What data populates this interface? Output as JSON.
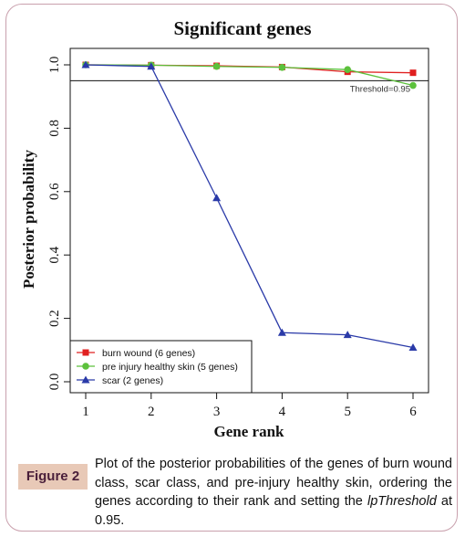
{
  "chart_data": {
    "type": "line",
    "title": "Significant genes",
    "xlabel": "Gene rank",
    "ylabel": "Posterior probability",
    "x": [
      1,
      2,
      3,
      4,
      5,
      6
    ],
    "xlim": [
      1,
      6
    ],
    "ylim": [
      0,
      1
    ],
    "x_ticks": [
      "1",
      "2",
      "3",
      "4",
      "5",
      "6"
    ],
    "y_ticks": [
      "0.0",
      "0.2",
      "0.4",
      "0.6",
      "0.8",
      "1.0"
    ],
    "threshold": {
      "value": 0.95,
      "label": "Threshold=0.95"
    },
    "legend_position": "bottom-left",
    "series": [
      {
        "name": "burn wound (6 genes)",
        "color": "#e02020",
        "marker": "square",
        "x": [
          1,
          2,
          3,
          4,
          5,
          6
        ],
        "values": [
          1.0,
          0.999,
          0.997,
          0.993,
          0.978,
          0.975
        ]
      },
      {
        "name": "pre injury healthy skin (5 genes)",
        "color": "#5cc13c",
        "marker": "circle",
        "x": [
          1,
          2,
          3,
          4,
          5,
          6
        ],
        "values": [
          1.0,
          0.999,
          0.995,
          0.992,
          0.985,
          0.935
        ]
      },
      {
        "name": "scar (2 genes)",
        "color": "#2a3aa8",
        "marker": "triangle",
        "x": [
          1,
          2,
          3,
          4,
          5,
          6
        ],
        "values": [
          1.0,
          0.995,
          0.58,
          0.155,
          0.148,
          0.108
        ]
      }
    ]
  },
  "caption": {
    "label": "Figure 2",
    "text_before": "Plot of the posterior probabilities of the genes of burn wound class, scar class, and pre-injury healthy skin, ordering the genes according to their rank and setting the ",
    "emphasis": "lpThreshold",
    "text_after": " at 0.95."
  }
}
